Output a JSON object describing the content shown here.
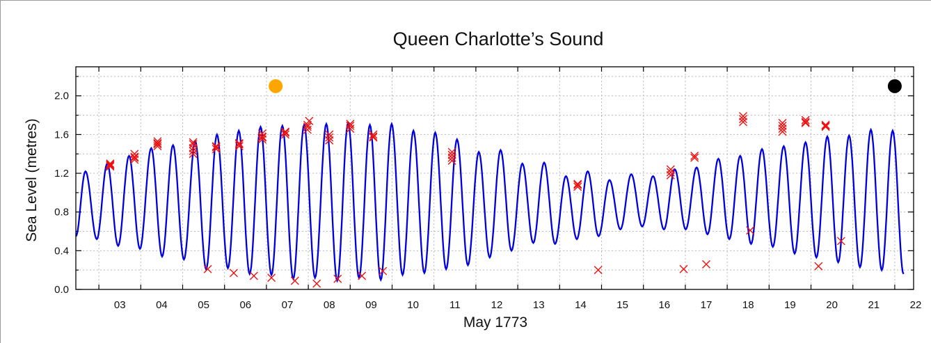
{
  "chart_data": {
    "type": "line",
    "title": "Queen Charlotte’s Sound",
    "xlabel": "May 1773",
    "ylabel": "Sea Level (metres)",
    "ylim": [
      0.0,
      2.3
    ],
    "xlim": [
      2.45,
      22.45
    ],
    "x_ticks": [
      "03",
      "04",
      "05",
      "06",
      "07",
      "08",
      "09",
      "10",
      "11",
      "12",
      "13",
      "14",
      "15",
      "16",
      "17",
      "18",
      "19",
      "20",
      "21",
      "22"
    ],
    "y_ticks": [
      "0.0",
      "0.4",
      "0.8",
      "1.2",
      "1.6",
      "2.0"
    ],
    "grid": true,
    "colors": {
      "tide_line": "#0000dd",
      "observations": "#ee1111",
      "sun_marker": "#ffa500",
      "moon_marker": "#000000"
    },
    "series": [
      {
        "type": "line",
        "highs": [
          [
            2.68,
            1.22
          ],
          [
            3.2,
            1.3
          ],
          [
            3.72,
            1.38
          ],
          [
            4.25,
            1.46
          ],
          [
            4.77,
            1.49
          ],
          [
            5.3,
            1.53
          ],
          [
            5.82,
            1.6
          ],
          [
            6.34,
            1.64
          ],
          [
            6.86,
            1.68
          ],
          [
            7.38,
            1.69
          ],
          [
            7.9,
            1.7
          ],
          [
            8.43,
            1.71
          ],
          [
            8.95,
            1.72
          ],
          [
            9.47,
            1.7
          ],
          [
            9.99,
            1.71
          ],
          [
            10.51,
            1.64
          ],
          [
            11.03,
            1.62
          ],
          [
            11.55,
            1.55
          ],
          [
            12.07,
            1.42
          ],
          [
            12.59,
            1.44
          ],
          [
            13.11,
            1.3
          ],
          [
            13.63,
            1.31
          ],
          [
            14.15,
            1.17
          ],
          [
            14.67,
            1.22
          ],
          [
            15.19,
            1.13
          ],
          [
            15.71,
            1.19
          ],
          [
            16.23,
            1.17
          ],
          [
            16.75,
            1.24
          ],
          [
            17.27,
            1.26
          ],
          [
            17.79,
            1.35
          ],
          [
            18.31,
            1.38
          ],
          [
            18.83,
            1.45
          ],
          [
            19.35,
            1.48
          ],
          [
            19.87,
            1.52
          ],
          [
            20.39,
            1.58
          ],
          [
            20.91,
            1.59
          ],
          [
            21.43,
            1.65
          ],
          [
            21.95,
            1.64
          ]
        ],
        "lows": [
          [
            2.45,
            0.55
          ],
          [
            2.95,
            0.52
          ],
          [
            3.46,
            0.45
          ],
          [
            3.98,
            0.42
          ],
          [
            4.51,
            0.34
          ],
          [
            5.03,
            0.31
          ],
          [
            5.56,
            0.21
          ],
          [
            6.08,
            0.22
          ],
          [
            6.6,
            0.16
          ],
          [
            7.12,
            0.15
          ],
          [
            7.64,
            0.11
          ],
          [
            8.16,
            0.12
          ],
          [
            8.69,
            0.09
          ],
          [
            9.21,
            0.12
          ],
          [
            9.73,
            0.1
          ],
          [
            10.25,
            0.15
          ],
          [
            10.77,
            0.17
          ],
          [
            11.29,
            0.21
          ],
          [
            11.81,
            0.25
          ],
          [
            12.33,
            0.33
          ],
          [
            12.85,
            0.4
          ],
          [
            13.37,
            0.48
          ],
          [
            13.89,
            0.47
          ],
          [
            14.41,
            0.52
          ],
          [
            14.93,
            0.55
          ],
          [
            15.45,
            0.62
          ],
          [
            15.97,
            0.65
          ],
          [
            16.49,
            0.62
          ],
          [
            17.01,
            0.62
          ],
          [
            17.53,
            0.57
          ],
          [
            18.05,
            0.52
          ],
          [
            18.57,
            0.47
          ],
          [
            19.09,
            0.44
          ],
          [
            19.61,
            0.37
          ],
          [
            20.13,
            0.33
          ],
          [
            20.65,
            0.28
          ],
          [
            21.17,
            0.23
          ],
          [
            21.69,
            0.2
          ],
          [
            22.21,
            0.16
          ]
        ]
      },
      {
        "type": "scatter",
        "marker": "x",
        "points": [
          [
            3.27,
            1.27
          ],
          [
            3.27,
            1.3
          ],
          [
            3.27,
            1.28
          ],
          [
            3.27,
            1.29
          ],
          [
            3.85,
            1.34
          ],
          [
            3.85,
            1.37
          ],
          [
            3.85,
            1.4
          ],
          [
            3.85,
            1.36
          ],
          [
            4.4,
            1.48
          ],
          [
            4.4,
            1.51
          ],
          [
            4.4,
            1.5
          ],
          [
            4.4,
            1.53
          ],
          [
            5.25,
            1.4
          ],
          [
            5.25,
            1.43
          ],
          [
            5.25,
            1.46
          ],
          [
            5.25,
            1.5
          ],
          [
            5.25,
            1.52
          ],
          [
            5.8,
            1.45
          ],
          [
            5.8,
            1.48
          ],
          [
            5.8,
            1.47
          ],
          [
            6.35,
            1.48
          ],
          [
            6.35,
            1.51
          ],
          [
            6.35,
            1.5
          ],
          [
            6.9,
            1.55
          ],
          [
            6.9,
            1.58
          ],
          [
            6.9,
            1.61
          ],
          [
            6.9,
            1.57
          ],
          [
            7.45,
            1.6
          ],
          [
            7.45,
            1.63
          ],
          [
            7.45,
            1.62
          ],
          [
            7.98,
            1.65
          ],
          [
            7.98,
            1.68
          ],
          [
            7.98,
            1.7
          ],
          [
            8.02,
            1.74
          ],
          [
            8.5,
            1.54
          ],
          [
            8.5,
            1.57
          ],
          [
            8.5,
            1.6
          ],
          [
            9.0,
            1.66
          ],
          [
            9.0,
            1.69
          ],
          [
            9.0,
            1.71
          ],
          [
            9.55,
            1.57
          ],
          [
            9.55,
            1.6
          ],
          [
            9.55,
            1.58
          ],
          [
            11.43,
            1.33
          ],
          [
            11.43,
            1.36
          ],
          [
            11.43,
            1.39
          ],
          [
            11.43,
            1.42
          ],
          [
            14.43,
            1.06
          ],
          [
            14.43,
            1.09
          ],
          [
            14.43,
            1.08
          ],
          [
            16.65,
            1.18
          ],
          [
            16.65,
            1.21
          ],
          [
            16.65,
            1.24
          ],
          [
            17.22,
            1.36
          ],
          [
            17.22,
            1.38
          ],
          [
            18.38,
            1.73
          ],
          [
            18.38,
            1.76
          ],
          [
            18.38,
            1.79
          ],
          [
            19.32,
            1.63
          ],
          [
            19.32,
            1.66
          ],
          [
            19.32,
            1.69
          ],
          [
            19.32,
            1.72
          ],
          [
            19.87,
            1.72
          ],
          [
            19.87,
            1.75
          ],
          [
            19.87,
            1.73
          ],
          [
            20.35,
            1.68
          ],
          [
            20.35,
            1.7
          ],
          [
            20.35,
            1.69
          ],
          [
            5.6,
            0.21
          ],
          [
            6.22,
            0.17
          ],
          [
            6.7,
            0.14
          ],
          [
            7.12,
            0.12
          ],
          [
            7.68,
            0.09
          ],
          [
            8.2,
            0.06
          ],
          [
            8.7,
            0.11
          ],
          [
            9.28,
            0.14
          ],
          [
            9.78,
            0.19
          ],
          [
            14.92,
            0.2
          ],
          [
            16.96,
            0.21
          ],
          [
            17.5,
            0.26
          ],
          [
            18.55,
            0.61
          ],
          [
            20.18,
            0.24
          ],
          [
            20.72,
            0.5
          ]
        ]
      },
      {
        "type": "marker",
        "shape": "circle",
        "x": 7.22,
        "y": 2.1,
        "color": "sun"
      },
      {
        "type": "marker",
        "shape": "circle",
        "x": 22.0,
        "y": 2.1,
        "color": "moon"
      }
    ]
  }
}
